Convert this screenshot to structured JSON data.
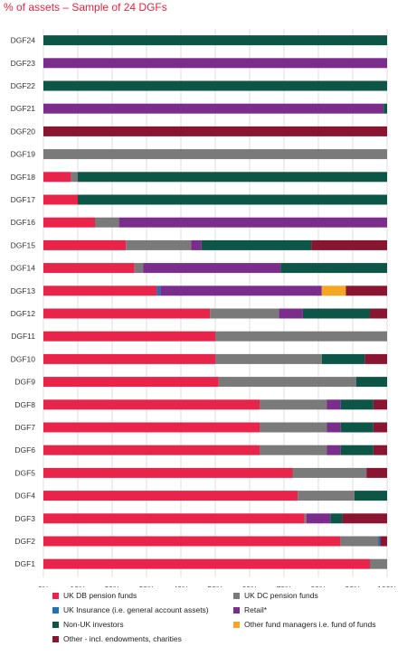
{
  "chart_data": {
    "type": "bar",
    "orientation": "horizontal",
    "stacked": true,
    "title": "% of assets – Sample of 24 DGFs",
    "xlim": [
      0,
      100
    ],
    "x_ticks": [
      "0%",
      "10%",
      "20%",
      "30%",
      "40%",
      "50%",
      "60%",
      "70%",
      "80%",
      "90%",
      "100%"
    ],
    "grid": true,
    "legend_position": "bottom",
    "categories": [
      "DGF24",
      "DGF23",
      "DGF22",
      "DGF21",
      "DGF20",
      "DGF19",
      "DGF18",
      "DGF17",
      "DGF16",
      "DGF15",
      "DGF14",
      "DGF13",
      "DGF12",
      "DGF11",
      "DGF10",
      "DGF9",
      "DGF8",
      "DGF7",
      "DGF6",
      "DGF5",
      "DGF4",
      "DGF3",
      "DGF2",
      "DGF1"
    ],
    "series": [
      {
        "name": "UK DB pension funds",
        "color": "#e8244a",
        "values": [
          0,
          0,
          0,
          0,
          0,
          0,
          8,
          10,
          15,
          24,
          26.5,
          33,
          48.5,
          50,
          50,
          51,
          63,
          63,
          63,
          72.5,
          74,
          76,
          86.5,
          95
        ]
      },
      {
        "name": "UK DC pension funds",
        "color": "#7a7a7a",
        "values": [
          0,
          0,
          0,
          0,
          0,
          100,
          2,
          0,
          7,
          19,
          2.5,
          0,
          20,
          50,
          31,
          40,
          19.5,
          19.5,
          19.5,
          21.5,
          16.5,
          0.5,
          11,
          5
        ]
      },
      {
        "name": "UK Insurance (i.e. general account assets)",
        "color": "#1f72b5",
        "values": [
          0,
          0,
          0,
          0,
          0,
          0,
          0,
          0,
          0,
          0,
          0,
          1,
          0,
          0,
          0,
          0,
          0,
          0,
          0,
          0,
          0,
          0,
          0.5,
          0
        ]
      },
      {
        "name": "Retail*",
        "color": "#7b2d8b",
        "values": [
          0,
          100,
          0,
          99,
          0,
          0,
          0,
          0,
          78,
          3,
          40,
          47,
          7,
          0,
          0,
          0,
          4,
          4,
          4,
          0,
          0,
          7,
          0,
          0
        ]
      },
      {
        "name": "Non-UK investors",
        "color": "#0d5547",
        "values": [
          100,
          0,
          100,
          1,
          0,
          0,
          90,
          90,
          0,
          32,
          31,
          0,
          19.5,
          0,
          12.5,
          9,
          9.5,
          9.5,
          9.5,
          0,
          9.5,
          3.5,
          0,
          0
        ]
      },
      {
        "name": "Other fund managers i.e. fund of funds",
        "color": "#f5a623",
        "values": [
          0,
          0,
          0,
          0,
          0,
          0,
          0,
          0,
          0,
          0,
          0,
          7,
          0,
          0,
          0,
          0,
          0,
          0,
          0,
          0,
          0,
          0,
          0,
          0
        ]
      },
      {
        "name": "Other - incl. endowments, charities",
        "color": "#8a1531",
        "values": [
          0,
          0,
          0,
          0,
          100,
          0,
          0,
          0,
          0,
          22,
          0,
          12,
          5,
          0,
          6.5,
          0,
          4,
          4,
          4,
          6,
          0,
          13,
          2,
          0
        ]
      }
    ]
  },
  "legend_order": [
    0,
    1,
    2,
    3,
    4,
    5,
    6
  ]
}
